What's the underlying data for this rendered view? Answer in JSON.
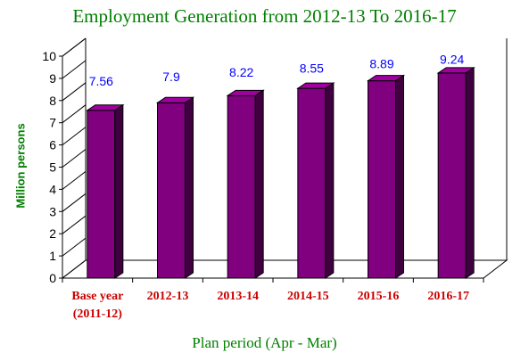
{
  "chart_data": {
    "type": "bar",
    "title": "Employment Generation from 2012-13 To 2016-17",
    "xlabel": "Plan period (Apr - Mar)",
    "ylabel": "Million persons",
    "categories": [
      [
        "Base year",
        "(2011-12)"
      ],
      [
        "2012-13"
      ],
      [
        "2013-14"
      ],
      [
        "2014-15"
      ],
      [
        "2015-16"
      ],
      [
        "2016-17"
      ]
    ],
    "values": [
      7.56,
      7.9,
      8.22,
      8.55,
      8.89,
      9.24
    ],
    "value_labels": [
      "7.56",
      "7.9",
      "8.22",
      "8.55",
      "8.89",
      "9.24"
    ],
    "yticks": [
      "0",
      "1",
      "2",
      "3",
      "4",
      "5",
      "6",
      "7",
      "8",
      "9",
      "10"
    ],
    "ylim": [
      0,
      10
    ],
    "grid": false,
    "style": "3d",
    "colors": {
      "bar": "#800080",
      "bar_top": "#a000a0",
      "bar_side": "#400040",
      "title": "#008000",
      "category": "#cc0000",
      "data_label": "#0000ff"
    }
  }
}
